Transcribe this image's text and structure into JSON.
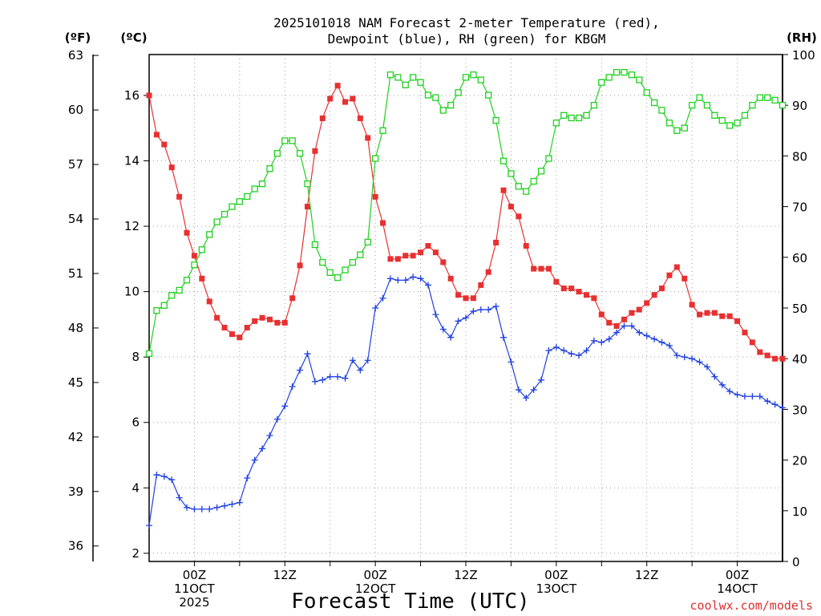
{
  "chart_data": {
    "type": "line",
    "title": "2025101018 NAM Forecast 2-meter Temperature (red), Dewpoint (blue), RH (green) for KBGM",
    "title_lines": [
      "2025101018 NAM Forecast 2-meter Temperature (red),",
      "Dewpoint (blue), RH (green) for KBGM"
    ],
    "xlabel": "Forecast Time (UTC)",
    "credit": "coolwx.com/models",
    "units": {
      "left_f": "(ºF)",
      "left_c": "(ºC)",
      "right_rh": "(RH)"
    },
    "x_range_hours": [
      18,
      102
    ],
    "celsius_range": [
      1.75,
      17.25
    ],
    "rh_range": [
      0,
      100
    ],
    "c_ticks": [
      "2",
      "4",
      "6",
      "8",
      "10",
      "12",
      "14",
      "16"
    ],
    "f_ticks": [
      "36",
      "39",
      "42",
      "45",
      "48",
      "51",
      "54",
      "57",
      "60",
      "63"
    ],
    "rh_ticks": [
      "0",
      "10",
      "20",
      "30",
      "40",
      "50",
      "60",
      "70",
      "80",
      "90",
      "100"
    ],
    "x_ticks": [
      {
        "hour": 24,
        "lines": [
          "00Z",
          "11OCT",
          "2025"
        ]
      },
      {
        "hour": 36,
        "lines": [
          "12Z"
        ]
      },
      {
        "hour": 48,
        "lines": [
          "00Z",
          "12OCT"
        ]
      },
      {
        "hour": 60,
        "lines": [
          "12Z"
        ]
      },
      {
        "hour": 72,
        "lines": [
          "00Z",
          "13OCT"
        ]
      },
      {
        "hour": 84,
        "lines": [
          "12Z"
        ]
      },
      {
        "hour": 96,
        "lines": [
          "00Z",
          "14OCT"
        ]
      }
    ],
    "series": [
      {
        "name": "2-meter Temperature",
        "unit": "C",
        "color": "#e83030",
        "marker": "filled-square",
        "values": [
          16.0,
          14.8,
          14.5,
          13.8,
          12.9,
          11.8,
          11.1,
          10.4,
          9.7,
          9.2,
          8.9,
          8.7,
          8.6,
          8.9,
          9.1,
          9.2,
          9.15,
          9.05,
          9.05,
          9.8,
          10.8,
          12.6,
          14.3,
          15.3,
          15.9,
          16.3,
          15.8,
          15.9,
          15.3,
          14.7,
          12.9,
          12.1,
          11.0,
          11.0,
          11.1,
          11.1,
          11.2,
          11.4,
          11.2,
          10.9,
          10.4,
          9.9,
          9.8,
          9.8,
          10.2,
          10.6,
          11.5,
          13.1,
          12.6,
          12.3,
          11.4,
          10.7,
          10.7,
          10.7,
          10.3,
          10.1,
          10.1,
          10.0,
          9.9,
          9.8,
          9.3,
          9.05,
          8.95,
          9.15,
          9.35,
          9.45,
          9.65,
          9.9,
          10.1,
          10.5,
          10.75,
          10.4,
          9.6,
          9.3,
          9.35,
          9.35,
          9.25,
          9.25,
          9.1,
          8.75,
          8.45,
          8.15,
          8.05,
          7.95,
          7.95
        ]
      },
      {
        "name": "Dewpoint",
        "unit": "C",
        "color": "#2040e0",
        "marker": "plus",
        "values": [
          2.85,
          4.4,
          4.35,
          4.25,
          3.7,
          3.4,
          3.35,
          3.35,
          3.35,
          3.4,
          3.45,
          3.5,
          3.55,
          4.3,
          4.85,
          5.2,
          5.6,
          6.1,
          6.5,
          7.1,
          7.6,
          8.1,
          7.25,
          7.3,
          7.4,
          7.4,
          7.35,
          7.9,
          7.6,
          7.9,
          9.5,
          9.8,
          10.4,
          10.35,
          10.35,
          10.45,
          10.4,
          10.2,
          9.3,
          8.85,
          8.6,
          9.1,
          9.2,
          9.4,
          9.45,
          9.45,
          9.55,
          8.6,
          7.85,
          7.0,
          6.75,
          7.0,
          7.3,
          8.2,
          8.3,
          8.2,
          8.1,
          8.05,
          8.2,
          8.5,
          8.45,
          8.55,
          8.75,
          8.95,
          8.95,
          8.75,
          8.65,
          8.55,
          8.45,
          8.35,
          8.05,
          8.0,
          7.95,
          7.85,
          7.7,
          7.4,
          7.15,
          6.95,
          6.85,
          6.8,
          6.8,
          6.8,
          6.65,
          6.55,
          6.45
        ]
      },
      {
        "name": "RH",
        "unit": "%",
        "color": "#20d020",
        "marker": "open-square",
        "values": [
          41.0,
          49.5,
          50.5,
          52.5,
          53.5,
          55.5,
          58.5,
          61.5,
          64.5,
          67.0,
          68.5,
          70.0,
          71.0,
          72.0,
          73.5,
          74.5,
          77.5,
          80.5,
          83.0,
          83.0,
          80.5,
          74.5,
          62.5,
          59.0,
          57.0,
          56.0,
          57.5,
          59.0,
          60.5,
          63.0,
          79.5,
          85.0,
          96.0,
          95.5,
          94.0,
          95.5,
          94.5,
          92.0,
          91.5,
          89.0,
          90.0,
          92.5,
          95.5,
          96.0,
          95.0,
          92.0,
          87.0,
          79.0,
          76.5,
          74.0,
          73.0,
          75.0,
          77.0,
          79.5,
          86.5,
          88.0,
          87.5,
          87.5,
          88.0,
          90.0,
          94.5,
          95.5,
          96.5,
          96.5,
          96.0,
          95.0,
          92.5,
          90.5,
          89.0,
          86.5,
          85.0,
          85.5,
          90.0,
          91.5,
          90.0,
          88.0,
          87.0,
          86.0,
          86.5,
          88.0,
          90.0,
          91.5,
          91.5,
          91.0,
          90.0
        ]
      }
    ]
  }
}
